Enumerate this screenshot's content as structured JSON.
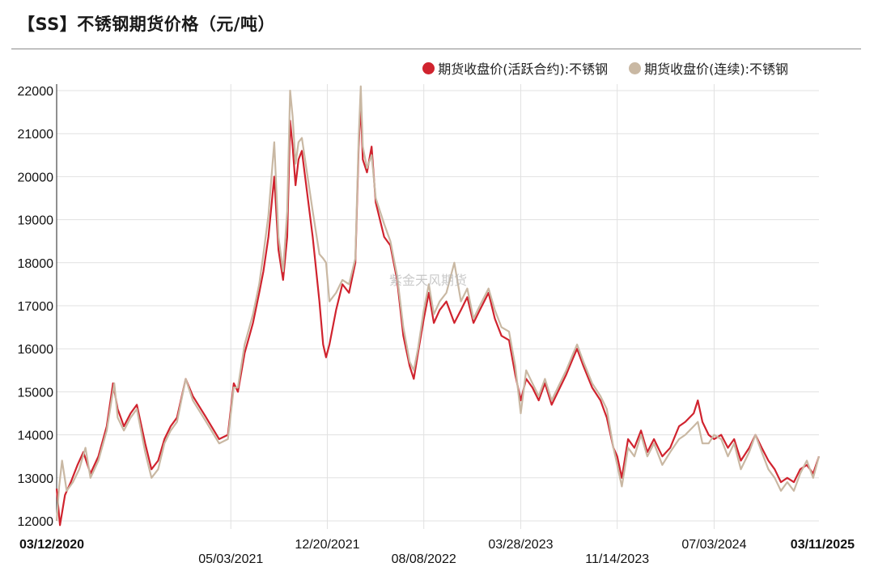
{
  "title": "【SS】不锈钢期货价格（元/吨）",
  "watermark": "紫金天风期货",
  "chart_data": {
    "type": "line",
    "title": "【SS】不锈钢期货价格（元/吨）",
    "xlabel": "",
    "ylabel": "",
    "ylim": [
      12000,
      22000
    ],
    "yticks": [
      12000,
      13000,
      14000,
      15000,
      16000,
      17000,
      18000,
      19000,
      20000,
      21000,
      22000
    ],
    "xlim": [
      "2020-03-12",
      "2025-03-11"
    ],
    "xticks": [
      {
        "label": "03/12/2020",
        "date": "2020-03-12",
        "bold": true,
        "row": 0
      },
      {
        "label": "05/03/2021",
        "date": "2021-05-03",
        "bold": false,
        "row": 1
      },
      {
        "label": "12/20/2021",
        "date": "2021-12-20",
        "bold": false,
        "row": 0
      },
      {
        "label": "08/08/2022",
        "date": "2022-08-08",
        "bold": false,
        "row": 1
      },
      {
        "label": "03/28/2023",
        "date": "2023-03-28",
        "bold": false,
        "row": 0
      },
      {
        "label": "11/14/2023",
        "date": "2023-11-14",
        "bold": false,
        "row": 1
      },
      {
        "label": "07/03/2024",
        "date": "2024-07-03",
        "bold": false,
        "row": 0
      },
      {
        "label": "03/11/2025",
        "date": "2025-03-11",
        "bold": true,
        "row": 0
      }
    ],
    "grid": true,
    "legend_position": "top-right",
    "series": [
      {
        "name": "期货收盘价(活跃合约):不锈钢",
        "color": "#d0232e",
        "points": [
          [
            "2020-03-12",
            12750
          ],
          [
            "2020-03-20",
            11900
          ],
          [
            "2020-04-01",
            12600
          ],
          [
            "2020-04-15",
            12900
          ],
          [
            "2020-05-01",
            13300
          ],
          [
            "2020-05-15",
            13600
          ],
          [
            "2020-06-01",
            13100
          ],
          [
            "2020-06-20",
            13500
          ],
          [
            "2020-07-10",
            14200
          ],
          [
            "2020-07-25",
            15200
          ],
          [
            "2020-08-05",
            14600
          ],
          [
            "2020-08-20",
            14200
          ],
          [
            "2020-09-05",
            14500
          ],
          [
            "2020-09-20",
            14700
          ],
          [
            "2020-10-10",
            13800
          ],
          [
            "2020-10-25",
            13200
          ],
          [
            "2020-11-10",
            13400
          ],
          [
            "2020-11-25",
            13900
          ],
          [
            "2020-12-10",
            14200
          ],
          [
            "2020-12-25",
            14400
          ],
          [
            "2021-01-15",
            15300
          ],
          [
            "2021-02-01",
            14900
          ],
          [
            "2021-03-05",
            14400
          ],
          [
            "2021-04-05",
            13900
          ],
          [
            "2021-04-26",
            14000
          ],
          [
            "2021-05-10",
            15200
          ],
          [
            "2021-05-20",
            15000
          ],
          [
            "2021-06-05",
            15900
          ],
          [
            "2021-06-25",
            16600
          ],
          [
            "2021-07-10",
            17300
          ],
          [
            "2021-07-20",
            17800
          ],
          [
            "2021-08-01",
            18600
          ],
          [
            "2021-08-15",
            20000
          ],
          [
            "2021-08-25",
            18300
          ],
          [
            "2021-09-05",
            17600
          ],
          [
            "2021-09-15",
            18600
          ],
          [
            "2021-09-22",
            21300
          ],
          [
            "2021-09-28",
            20700
          ],
          [
            "2021-10-05",
            19800
          ],
          [
            "2021-10-12",
            20400
          ],
          [
            "2021-10-20",
            20600
          ],
          [
            "2021-11-15",
            18600
          ],
          [
            "2021-12-01",
            17100
          ],
          [
            "2021-12-10",
            16100
          ],
          [
            "2021-12-17",
            15800
          ],
          [
            "2021-12-25",
            16100
          ],
          [
            "2022-01-10",
            16900
          ],
          [
            "2022-01-25",
            17500
          ],
          [
            "2022-02-10",
            17300
          ],
          [
            "2022-02-25",
            18000
          ],
          [
            "2022-03-05",
            20700
          ],
          [
            "2022-03-10",
            21700
          ],
          [
            "2022-03-15",
            20400
          ],
          [
            "2022-03-25",
            20100
          ],
          [
            "2022-04-05",
            20700
          ],
          [
            "2022-04-15",
            19400
          ],
          [
            "2022-05-05",
            18600
          ],
          [
            "2022-05-20",
            18400
          ],
          [
            "2022-06-05",
            17600
          ],
          [
            "2022-06-20",
            16300
          ],
          [
            "2022-07-05",
            15600
          ],
          [
            "2022-07-15",
            15300
          ],
          [
            "2022-07-25",
            15900
          ],
          [
            "2022-08-08",
            16700
          ],
          [
            "2022-08-20",
            17300
          ],
          [
            "2022-09-01",
            16600
          ],
          [
            "2022-09-15",
            16900
          ],
          [
            "2022-10-01",
            17100
          ],
          [
            "2022-10-20",
            16600
          ],
          [
            "2022-11-05",
            16900
          ],
          [
            "2022-11-20",
            17200
          ],
          [
            "2022-12-05",
            16600
          ],
          [
            "2022-12-20",
            16900
          ],
          [
            "2023-01-10",
            17300
          ],
          [
            "2023-01-25",
            16700
          ],
          [
            "2023-02-10",
            16300
          ],
          [
            "2023-02-28",
            16200
          ],
          [
            "2023-03-15",
            15400
          ],
          [
            "2023-03-28",
            14800
          ],
          [
            "2023-04-10",
            15300
          ],
          [
            "2023-04-25",
            15100
          ],
          [
            "2023-05-10",
            14800
          ],
          [
            "2023-05-25",
            15200
          ],
          [
            "2023-06-10",
            14700
          ],
          [
            "2023-06-25",
            15000
          ],
          [
            "2023-07-15",
            15400
          ],
          [
            "2023-08-01",
            15800
          ],
          [
            "2023-08-10",
            16000
          ],
          [
            "2023-08-25",
            15600
          ],
          [
            "2023-09-15",
            15100
          ],
          [
            "2023-10-05",
            14800
          ],
          [
            "2023-10-20",
            14400
          ],
          [
            "2023-11-05",
            13700
          ],
          [
            "2023-11-14",
            13500
          ],
          [
            "2023-11-25",
            13000
          ],
          [
            "2023-12-10",
            13900
          ],
          [
            "2023-12-25",
            13700
          ],
          [
            "2024-01-10",
            14100
          ],
          [
            "2024-01-25",
            13600
          ],
          [
            "2024-02-10",
            13900
          ],
          [
            "2024-03-01",
            13500
          ],
          [
            "2024-03-20",
            13700
          ],
          [
            "2024-04-10",
            14200
          ],
          [
            "2024-04-25",
            14300
          ],
          [
            "2024-05-15",
            14500
          ],
          [
            "2024-05-25",
            14800
          ],
          [
            "2024-06-05",
            14300
          ],
          [
            "2024-06-20",
            14000
          ],
          [
            "2024-07-03",
            13900
          ],
          [
            "2024-07-20",
            14000
          ],
          [
            "2024-08-05",
            13700
          ],
          [
            "2024-08-20",
            13900
          ],
          [
            "2024-09-05",
            13400
          ],
          [
            "2024-09-25",
            13700
          ],
          [
            "2024-10-10",
            14000
          ],
          [
            "2024-10-25",
            13700
          ],
          [
            "2024-11-10",
            13400
          ],
          [
            "2024-11-25",
            13200
          ],
          [
            "2024-12-10",
            12900
          ],
          [
            "2024-12-25",
            13000
          ],
          [
            "2025-01-10",
            12900
          ],
          [
            "2025-01-25",
            13200
          ],
          [
            "2025-02-10",
            13300
          ],
          [
            "2025-02-25",
            13100
          ],
          [
            "2025-03-11",
            13500
          ]
        ]
      },
      {
        "name": "期货收盘价(连续):不锈钢",
        "color": "#c9b8a3",
        "points": [
          [
            "2020-03-12",
            12000
          ],
          [
            "2020-03-18",
            12800
          ],
          [
            "2020-03-25",
            13400
          ],
          [
            "2020-04-05",
            12700
          ],
          [
            "2020-04-20",
            12900
          ],
          [
            "2020-05-05",
            13200
          ],
          [
            "2020-05-20",
            13700
          ],
          [
            "2020-06-01",
            13000
          ],
          [
            "2020-06-20",
            13400
          ],
          [
            "2020-07-10",
            14100
          ],
          [
            "2020-07-28",
            15200
          ],
          [
            "2020-08-05",
            14400
          ],
          [
            "2020-08-20",
            14100
          ],
          [
            "2020-09-05",
            14400
          ],
          [
            "2020-09-20",
            14600
          ],
          [
            "2020-10-10",
            13600
          ],
          [
            "2020-10-25",
            13000
          ],
          [
            "2020-11-10",
            13200
          ],
          [
            "2020-11-25",
            13800
          ],
          [
            "2020-12-10",
            14100
          ],
          [
            "2020-12-25",
            14300
          ],
          [
            "2021-01-15",
            15300
          ],
          [
            "2021-02-01",
            14800
          ],
          [
            "2021-03-05",
            14300
          ],
          [
            "2021-04-05",
            13800
          ],
          [
            "2021-04-26",
            13900
          ],
          [
            "2021-05-10",
            15100
          ],
          [
            "2021-05-20",
            15100
          ],
          [
            "2021-06-05",
            16100
          ],
          [
            "2021-06-25",
            16800
          ],
          [
            "2021-07-10",
            17500
          ],
          [
            "2021-07-20",
            18200
          ],
          [
            "2021-08-01",
            19100
          ],
          [
            "2021-08-15",
            20800
          ],
          [
            "2021-08-25",
            18600
          ],
          [
            "2021-09-05",
            17800
          ],
          [
            "2021-09-15",
            19200
          ],
          [
            "2021-09-22",
            22000
          ],
          [
            "2021-09-28",
            21400
          ],
          [
            "2021-10-05",
            20300
          ],
          [
            "2021-10-12",
            20800
          ],
          [
            "2021-10-20",
            20900
          ],
          [
            "2021-11-15",
            19200
          ],
          [
            "2021-12-01",
            18200
          ],
          [
            "2021-12-10",
            18100
          ],
          [
            "2021-12-17",
            18000
          ],
          [
            "2021-12-25",
            17100
          ],
          [
            "2022-01-10",
            17300
          ],
          [
            "2022-01-25",
            17600
          ],
          [
            "2022-02-10",
            17500
          ],
          [
            "2022-02-25",
            18100
          ],
          [
            "2022-03-05",
            20900
          ],
          [
            "2022-03-10",
            22100
          ],
          [
            "2022-03-15",
            20700
          ],
          [
            "2022-03-25",
            20200
          ],
          [
            "2022-04-05",
            20500
          ],
          [
            "2022-04-15",
            19500
          ],
          [
            "2022-05-05",
            18900
          ],
          [
            "2022-05-20",
            18500
          ],
          [
            "2022-06-05",
            17700
          ],
          [
            "2022-06-20",
            16500
          ],
          [
            "2022-07-05",
            15700
          ],
          [
            "2022-07-15",
            15500
          ],
          [
            "2022-07-25",
            16000
          ],
          [
            "2022-08-08",
            16900
          ],
          [
            "2022-08-20",
            17500
          ],
          [
            "2022-09-01",
            16800
          ],
          [
            "2022-09-15",
            17100
          ],
          [
            "2022-10-01",
            17300
          ],
          [
            "2022-10-20",
            18000
          ],
          [
            "2022-11-05",
            17100
          ],
          [
            "2022-11-20",
            17400
          ],
          [
            "2022-12-05",
            16700
          ],
          [
            "2022-12-20",
            17000
          ],
          [
            "2023-01-10",
            17400
          ],
          [
            "2023-01-25",
            16900
          ],
          [
            "2023-02-10",
            16500
          ],
          [
            "2023-02-28",
            16400
          ],
          [
            "2023-03-15",
            15600
          ],
          [
            "2023-03-28",
            14500
          ],
          [
            "2023-04-10",
            15500
          ],
          [
            "2023-04-25",
            15200
          ],
          [
            "2023-05-10",
            14900
          ],
          [
            "2023-05-25",
            15300
          ],
          [
            "2023-06-10",
            14800
          ],
          [
            "2023-06-25",
            15100
          ],
          [
            "2023-07-15",
            15500
          ],
          [
            "2023-08-01",
            15900
          ],
          [
            "2023-08-10",
            16100
          ],
          [
            "2023-08-25",
            15700
          ],
          [
            "2023-09-15",
            15200
          ],
          [
            "2023-10-05",
            14900
          ],
          [
            "2023-10-20",
            14600
          ],
          [
            "2023-11-05",
            13700
          ],
          [
            "2023-11-14",
            13300
          ],
          [
            "2023-11-25",
            12800
          ],
          [
            "2023-12-10",
            13700
          ],
          [
            "2023-12-25",
            13500
          ],
          [
            "2024-01-10",
            14000
          ],
          [
            "2024-01-25",
            13500
          ],
          [
            "2024-02-10",
            13800
          ],
          [
            "2024-03-01",
            13300
          ],
          [
            "2024-03-20",
            13600
          ],
          [
            "2024-04-10",
            13900
          ],
          [
            "2024-04-25",
            14000
          ],
          [
            "2024-05-15",
            14200
          ],
          [
            "2024-05-25",
            14300
          ],
          [
            "2024-06-05",
            13800
          ],
          [
            "2024-06-20",
            13800
          ],
          [
            "2024-07-03",
            14000
          ],
          [
            "2024-07-20",
            13900
          ],
          [
            "2024-08-05",
            13500
          ],
          [
            "2024-08-20",
            13800
          ],
          [
            "2024-09-05",
            13200
          ],
          [
            "2024-09-25",
            13600
          ],
          [
            "2024-10-10",
            14000
          ],
          [
            "2024-10-25",
            13600
          ],
          [
            "2024-11-10",
            13200
          ],
          [
            "2024-11-25",
            13000
          ],
          [
            "2024-12-10",
            12700
          ],
          [
            "2024-12-25",
            12900
          ],
          [
            "2025-01-10",
            12700
          ],
          [
            "2025-01-25",
            13100
          ],
          [
            "2025-02-10",
            13400
          ],
          [
            "2025-02-25",
            13000
          ],
          [
            "2025-03-11",
            13500
          ]
        ]
      }
    ]
  }
}
